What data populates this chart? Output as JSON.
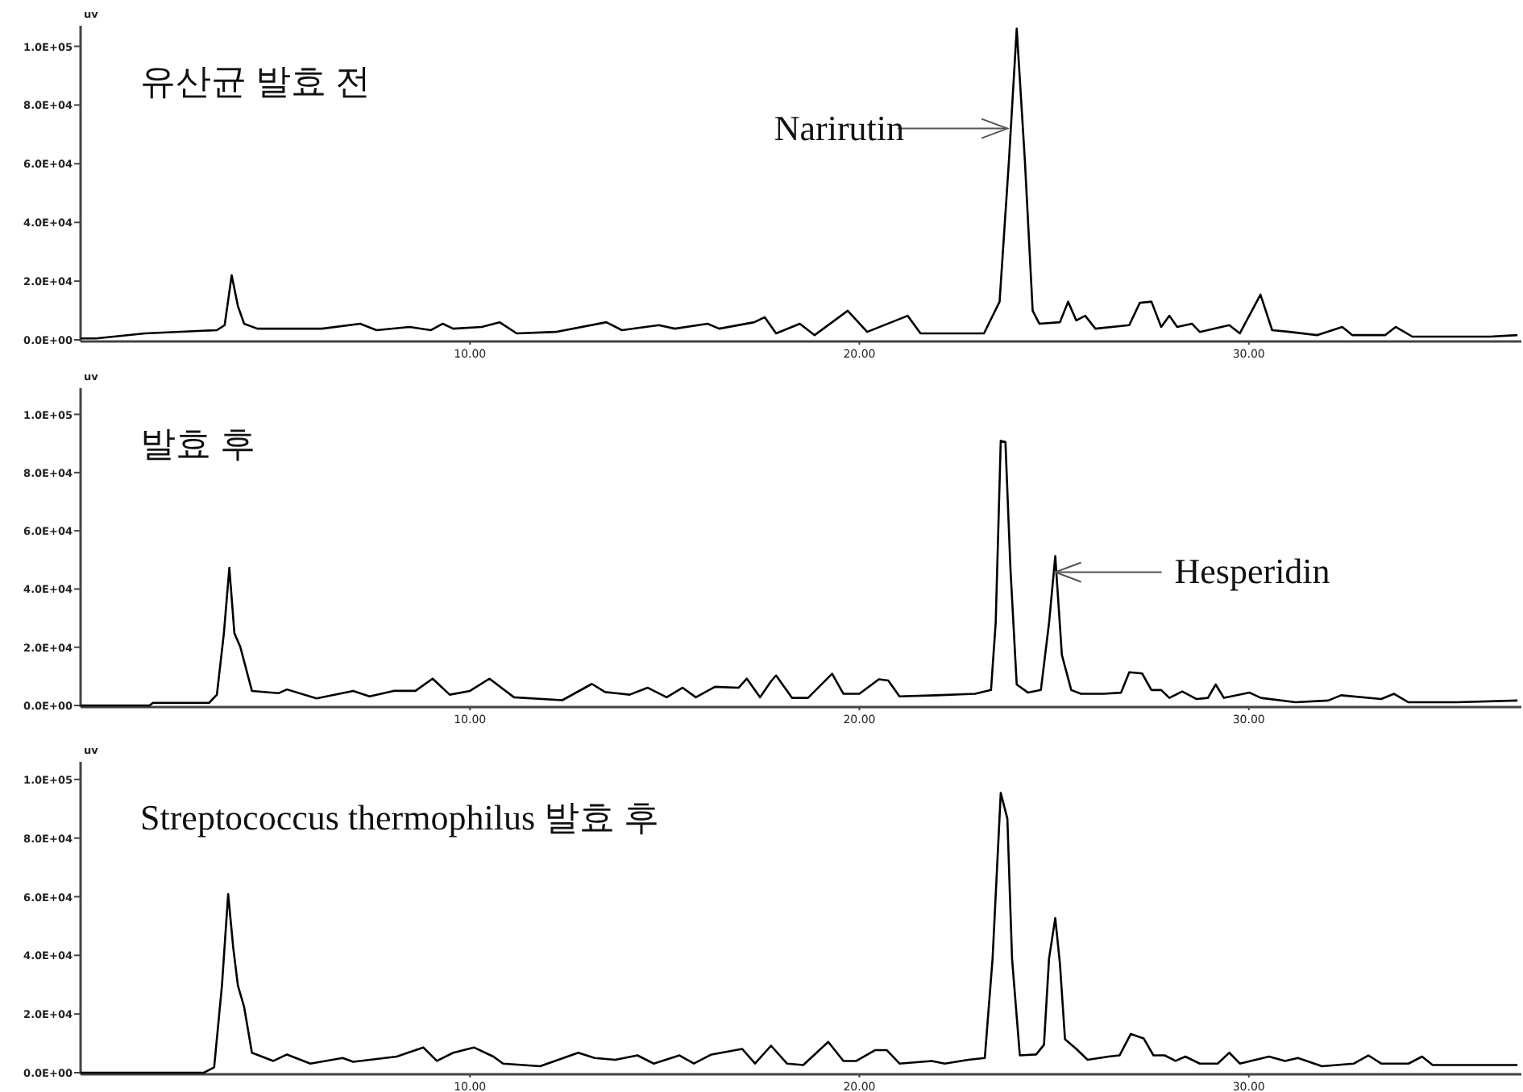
{
  "chart_data": [
    {
      "type": "line",
      "title": "유산균 발효 전",
      "ylabel": "uv",
      "xlim": [
        0,
        37
      ],
      "ylim": [
        0,
        107000
      ],
      "xticks": [
        {
          "value": 10,
          "label": "10.00"
        },
        {
          "value": 20,
          "label": "20.00"
        },
        {
          "value": 30,
          "label": "30.00"
        }
      ],
      "yticks": [
        {
          "value": 0,
          "label": "0.0E+00"
        },
        {
          "value": 20000,
          "label": "2.0E+04"
        },
        {
          "value": 40000,
          "label": "4.0E+04"
        },
        {
          "value": 60000,
          "label": "6.0E+04"
        },
        {
          "value": 80000,
          "label": "8.0E+04"
        },
        {
          "value": 100000,
          "label": "1.0E+05"
        }
      ],
      "grid": false,
      "annotations": [
        {
          "text": "Narirutin",
          "x": 23.8,
          "y": 72000
        }
      ],
      "series": [
        {
          "color": "#000000",
          "x": [
            0,
            0.4,
            1.65,
            3.5,
            3.7,
            3.88,
            4.04,
            4.2,
            4.54,
            6.2,
            7.18,
            7.6,
            8.45,
            9.0,
            9.3,
            9.57,
            10.3,
            10.76,
            11.2,
            12.2,
            13.5,
            13.9,
            14.85,
            15.26,
            16.1,
            16.4,
            17.3,
            17.57,
            17.86,
            18.47,
            18.85,
            19.7,
            20.2,
            21.24,
            21.57,
            23.2,
            23.6,
            23.84,
            24.04,
            24.25,
            24.45,
            24.62,
            25.15,
            25.36,
            25.57,
            25.8,
            26.06,
            26.93,
            27.2,
            27.5,
            27.75,
            27.96,
            28.16,
            28.54,
            28.74,
            29.5,
            29.77,
            30.3,
            30.6,
            31.05,
            31.75,
            32.4,
            32.66,
            33.5,
            33.77,
            34.2,
            36.2,
            36.9
          ],
          "values": [
            500,
            500,
            2200,
            3300,
            5000,
            22000,
            11500,
            5500,
            3800,
            3800,
            5500,
            3300,
            4400,
            3300,
            5500,
            3800,
            4400,
            6000,
            2200,
            2700,
            6000,
            3300,
            5000,
            3800,
            5500,
            3800,
            6000,
            7700,
            2200,
            5500,
            1600,
            9900,
            2700,
            8200,
            2200,
            2200,
            13000,
            61000,
            106000,
            61000,
            9900,
            5500,
            6000,
            13000,
            6600,
            8200,
            3800,
            5000,
            12600,
            13000,
            4400,
            8200,
            4400,
            5500,
            2700,
            5000,
            2200,
            15400,
            3300,
            2700,
            1600,
            4400,
            1600,
            1600,
            4400,
            1100,
            1100,
            1600
          ]
        }
      ]
    },
    {
      "type": "line",
      "title": "발효 후",
      "ylabel": "uv",
      "xlim": [
        0,
        37
      ],
      "ylim": [
        0,
        109000
      ],
      "xticks": [
        {
          "value": 10,
          "label": "10.00"
        },
        {
          "value": 20,
          "label": "20.00"
        },
        {
          "value": 30,
          "label": "30.00"
        }
      ],
      "yticks": [
        {
          "value": 0,
          "label": "0.0E+00"
        },
        {
          "value": 20000,
          "label": "2.0E+04"
        },
        {
          "value": 40000,
          "label": "4.0E+04"
        },
        {
          "value": 60000,
          "label": "6.0E+04"
        },
        {
          "value": 80000,
          "label": "8.0E+04"
        },
        {
          "value": 100000,
          "label": "1.0E+05"
        }
      ],
      "grid": false,
      "annotations": [
        {
          "text": "Hesperidin",
          "x": 25.03,
          "y": 45800
        }
      ],
      "series": [
        {
          "color": "#000000",
          "x": [
            0,
            1.77,
            1.86,
            3.3,
            3.5,
            3.68,
            3.82,
            3.95,
            4.1,
            4.4,
            5.08,
            5.3,
            6.06,
            7.0,
            7.42,
            8.04,
            8.6,
            9.04,
            9.48,
            10.0,
            10.5,
            11.13,
            12.37,
            13.13,
            13.47,
            14.1,
            14.56,
            15.05,
            15.46,
            15.8,
            16.29,
            16.9,
            17.11,
            17.45,
            17.73,
            17.86,
            18.27,
            18.68,
            19.3,
            19.59,
            20.0,
            20.5,
            20.74,
            21.03,
            21.98,
            22.97,
            23.38,
            23.5,
            23.63,
            23.75,
            23.88,
            24.04,
            24.33,
            24.66,
            24.87,
            25.03,
            25.2,
            25.44,
            25.69,
            26.27,
            26.72,
            26.93,
            27.26,
            27.5,
            27.75,
            27.96,
            28.29,
            28.66,
            28.95,
            29.15,
            29.36,
            30.02,
            30.31,
            31.2,
            32.04,
            32.37,
            33.4,
            33.73,
            34.1,
            35.34,
            36.9
          ],
          "values": [
            0,
            0,
            900,
            900,
            3700,
            24800,
            47300,
            24800,
            20200,
            5000,
            4200,
            5500,
            2400,
            5000,
            3100,
            5000,
            5000,
            9200,
            3700,
            5000,
            9200,
            2800,
            1800,
            7400,
            4600,
            3700,
            6100,
            2800,
            6100,
            2800,
            6400,
            6100,
            9200,
            2800,
            8300,
            10300,
            2600,
            2600,
            10900,
            4000,
            4000,
            9000,
            8600,
            3100,
            3500,
            4000,
            5300,
            28300,
            90900,
            90500,
            46700,
            7200,
            4400,
            5300,
            28300,
            51300,
            17300,
            5300,
            4000,
            4000,
            4400,
            11400,
            11000,
            5300,
            5300,
            2600,
            4800,
            2200,
            2600,
            7200,
            2600,
            4400,
            2600,
            1100,
            1700,
            3500,
            2200,
            4000,
            1100,
            1100,
            1700
          ]
        }
      ]
    },
    {
      "type": "line",
      "title": "Streptococcus thermophilus 발효 후",
      "ylabel": "uv",
      "xlim": [
        0,
        37
      ],
      "ylim": [
        0,
        106000
      ],
      "xticks": [
        {
          "value": 10,
          "label": "10.00"
        },
        {
          "value": 20,
          "label": "20.00"
        },
        {
          "value": 30,
          "label": "30.00"
        }
      ],
      "yticks": [
        {
          "value": 0,
          "label": "0.0E+00"
        },
        {
          "value": 20000,
          "label": "2.0E+04"
        },
        {
          "value": 40000,
          "label": "4.0E+04"
        },
        {
          "value": 60000,
          "label": "6.0E+04"
        },
        {
          "value": 80000,
          "label": "8.0E+04"
        },
        {
          "value": 100000,
          "label": "1.0E+05"
        }
      ],
      "grid": false,
      "series": [
        {
          "color": "#000000",
          "x": [
            0,
            3.17,
            3.43,
            3.63,
            3.79,
            3.92,
            4.04,
            4.2,
            4.4,
            4.95,
            5.3,
            5.9,
            6.73,
            7.0,
            8.12,
            8.8,
            9.15,
            9.57,
            10.1,
            10.6,
            10.85,
            11.8,
            12.78,
            13.2,
            13.73,
            14.3,
            14.72,
            15.38,
            15.75,
            16.2,
            16.99,
            17.32,
            17.73,
            18.14,
            18.56,
            19.2,
            19.59,
            19.92,
            20.41,
            20.7,
            21.03,
            21.86,
            22.19,
            22.8,
            23.22,
            23.42,
            23.63,
            23.8,
            23.92,
            24.12,
            24.54,
            24.74,
            24.87,
            25.03,
            25.15,
            25.28,
            25.57,
            25.86,
            26.4,
            26.68,
            26.97,
            27.3,
            27.55,
            27.84,
            28.12,
            28.37,
            28.74,
            29.2,
            29.5,
            29.77,
            30.52,
            30.93,
            31.26,
            31.88,
            32.7,
            33.07,
            33.4,
            34.1,
            34.45,
            34.72,
            36.9
          ],
          "values": [
            0,
            0,
            1800,
            29700,
            60900,
            42600,
            29700,
            22400,
            6800,
            4000,
            6200,
            3100,
            5000,
            3700,
            5500,
            8600,
            4000,
            6800,
            8600,
            5500,
            3100,
            2200,
            6800,
            5000,
            4400,
            5900,
            3100,
            5900,
            3100,
            6200,
            8100,
            3100,
            9200,
            3100,
            2600,
            10500,
            4000,
            4000,
            7700,
            7700,
            3100,
            4000,
            3100,
            4400,
            5000,
            38900,
            95400,
            86600,
            38900,
            5900,
            6200,
            9500,
            38900,
            52700,
            37100,
            11400,
            8100,
            4400,
            5500,
            5900,
            13200,
            11700,
            5900,
            5900,
            4000,
            5500,
            3100,
            3100,
            6800,
            3100,
            5500,
            4000,
            5000,
            2200,
            3100,
            5900,
            3100,
            3100,
            5500,
            2600,
            2600
          ]
        }
      ]
    }
  ]
}
